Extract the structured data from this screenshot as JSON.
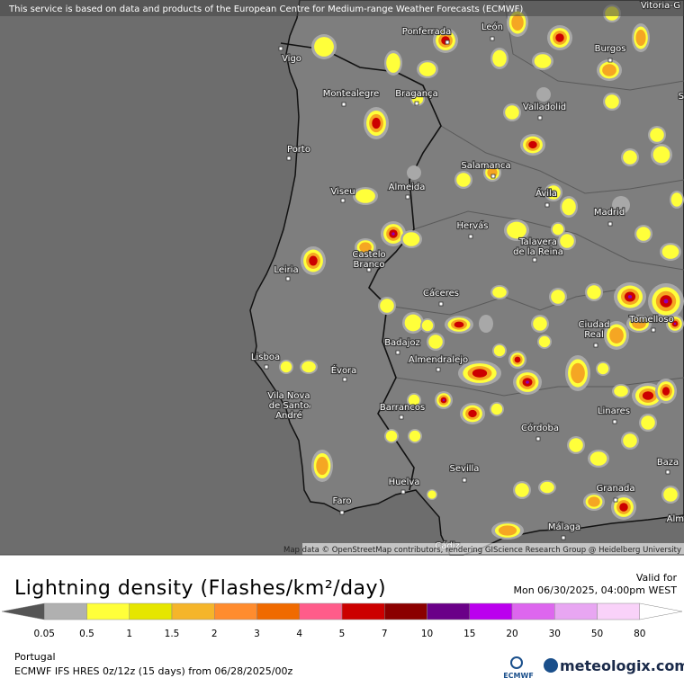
{
  "header": {
    "notice": "This service is based on data and products of the European Centre for Medium-range Weather Forecasts (ECMWF)"
  },
  "map": {
    "attribution": "Map data © OpenStreetMap contributors, rendering GIScience Research Group @ Heidelberg University",
    "places": [
      "Ponferrada",
      "León",
      "Burgos",
      "Vigo",
      "Montealegre",
      "Bragança",
      "Valladolid",
      "Porto",
      "Salamanca",
      "Almeida",
      "Viseu",
      "Ávila",
      "Madrid",
      "Hervás",
      [
        "Castelo",
        "Branco"
      ],
      [
        "Talavera",
        "de la Reina"
      ],
      "Leiria",
      "Cáceres",
      [
        "Ciudad",
        "Real"
      ],
      "Tomelloso",
      "Badajoz",
      "Lisboa",
      "Almendralejo",
      "Évora",
      [
        "Vila Nova",
        "de Santo",
        "André"
      ],
      "Barrancos",
      "Linares",
      "Córdoba",
      "Baza",
      "Sevilla",
      "Huelva",
      "Granada",
      "Faro",
      "Málaga"
    ],
    "edge_labels": [
      "Vitoria-G",
      "S",
      "Alm",
      "Cádiz"
    ]
  },
  "legend": {
    "title": "Lightning density (Flashes/km²/day)",
    "valid_for": "Valid for",
    "valid_time": "Mon 06/30/2025, 04:00pm WEST",
    "colors": [
      "#555555",
      "#b0b0b0",
      "#ffff3a",
      "#e6e600",
      "#f5b52a",
      "#ff8c2e",
      "#f06a00",
      "#ff5c8a",
      "#cc0000",
      "#8b0000",
      "#6a0088",
      "#bb00ee",
      "#dd66ee",
      "#e8a6f2",
      "#f9d2f9",
      "#ffffff"
    ],
    "ticks": [
      "0.05",
      "0.5",
      "1",
      "1.5",
      "2",
      "3",
      "4",
      "5",
      "7",
      "10",
      "15",
      "20",
      "30",
      "50",
      "80"
    ]
  },
  "footer": {
    "region": "Portugal",
    "model": "ECMWF IFS HRES 0z/12z (15 days) from 06/28/2025/00z",
    "logos": [
      "ECMWF",
      "meteologix.com"
    ]
  }
}
